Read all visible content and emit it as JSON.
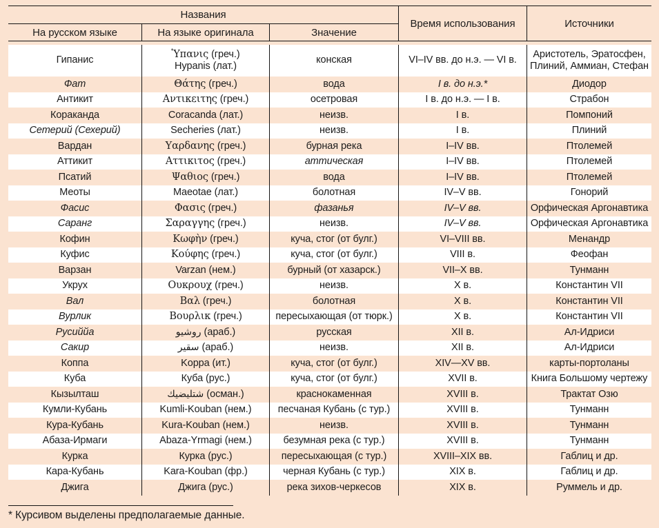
{
  "colors": {
    "page_background": "#fbe3d1",
    "row_white": "#ffffff",
    "line": "#141414",
    "text": "#1c1c1c"
  },
  "header": {
    "names_group": "Названия",
    "col_russian": "На русском языке",
    "col_original": "На языке оригинала",
    "col_meaning": "Значение",
    "col_time": "Время использования",
    "col_sources": "Источники"
  },
  "rows": [
    {
      "name": "Гипанис",
      "name_italic": false,
      "tall": true,
      "original": [
        {
          "special": "Ὑπανις",
          "kind": "greek",
          "rest": " (греч.)"
        },
        {
          "special": "",
          "kind": "",
          "rest": "Hypanis (лат.)"
        }
      ],
      "meaning": {
        "text": "конская",
        "italic": false
      },
      "time": {
        "text": "VI–IV вв. до н.э. — VI в.",
        "italic": false
      },
      "sources": [
        "Аристотель, Эратосфен,",
        "Плиний, Аммиан, Стефан"
      ]
    },
    {
      "name": "Фат",
      "name_italic": true,
      "tall": false,
      "original": [
        {
          "special": "Θάτης",
          "kind": "greek",
          "rest": " (греч.)"
        }
      ],
      "meaning": {
        "text": "вода",
        "italic": false
      },
      "time": {
        "text": "I в. до н.э.*",
        "italic": true
      },
      "sources": [
        "Диодор"
      ]
    },
    {
      "name": "Антикит",
      "name_italic": false,
      "tall": false,
      "original": [
        {
          "special": "Αντικειτης",
          "kind": "greek",
          "rest": " (греч.)"
        }
      ],
      "meaning": {
        "text": "осетровая",
        "italic": false
      },
      "time": {
        "text": "I в. до н.э. — I в.",
        "italic": false
      },
      "sources": [
        "Страбон"
      ]
    },
    {
      "name": "Кораканда",
      "name_italic": false,
      "tall": false,
      "original": [
        {
          "special": "",
          "kind": "",
          "rest": "Coracanda (лат.)"
        }
      ],
      "meaning": {
        "text": "неизв.",
        "italic": false
      },
      "time": {
        "text": "I в.",
        "italic": false
      },
      "sources": [
        "Помпоний"
      ]
    },
    {
      "name": "Сетерий (Сехерий)",
      "name_italic": true,
      "tall": false,
      "original": [
        {
          "special": "",
          "kind": "",
          "rest": "Secheries (лат.)"
        }
      ],
      "meaning": {
        "text": "неизв.",
        "italic": false
      },
      "time": {
        "text": "I в.",
        "italic": false
      },
      "sources": [
        "Плиний"
      ]
    },
    {
      "name": "Вардан",
      "name_italic": false,
      "tall": false,
      "original": [
        {
          "special": "Υαρδανης",
          "kind": "greek",
          "rest": " (греч.)"
        }
      ],
      "meaning": {
        "text": "бурная река",
        "italic": false
      },
      "time": {
        "text": "I–IV вв.",
        "italic": false
      },
      "sources": [
        "Птолемей"
      ]
    },
    {
      "name": "Аттикит",
      "name_italic": false,
      "tall": false,
      "original": [
        {
          "special": "Αττικιτος",
          "kind": "greek",
          "rest": " (греч.)"
        }
      ],
      "meaning": {
        "text": "аттическая",
        "italic": true
      },
      "time": {
        "text": "I–IV вв.",
        "italic": false
      },
      "sources": [
        "Птолемей"
      ]
    },
    {
      "name": "Псатий",
      "name_italic": false,
      "tall": false,
      "original": [
        {
          "special": "Ψαθιος",
          "kind": "greek",
          "rest": " (греч.)"
        }
      ],
      "meaning": {
        "text": "вода",
        "italic": false
      },
      "time": {
        "text": "I–IV вв.",
        "italic": false
      },
      "sources": [
        "Птолемей"
      ]
    },
    {
      "name": "Меоты",
      "name_italic": false,
      "tall": false,
      "original": [
        {
          "special": "",
          "kind": "",
          "rest": "Maeotae (лат.)"
        }
      ],
      "meaning": {
        "text": "болотная",
        "italic": false
      },
      "time": {
        "text": "IV–V вв.",
        "italic": false
      },
      "sources": [
        "Гонорий"
      ]
    },
    {
      "name": "Фасис",
      "name_italic": true,
      "tall": false,
      "original": [
        {
          "special": "Φασις",
          "kind": "greek",
          "rest": " (греч.)"
        }
      ],
      "meaning": {
        "text": "фазанья",
        "italic": true
      },
      "time": {
        "text": "IV–V вв.",
        "italic": true
      },
      "sources": [
        "Орфическая Аргонавтика"
      ]
    },
    {
      "name": "Саранг",
      "name_italic": true,
      "tall": false,
      "original": [
        {
          "special": "Σαραγγης",
          "kind": "greek",
          "rest": " (греч.)"
        }
      ],
      "meaning": {
        "text": "неизв.",
        "italic": false
      },
      "time": {
        "text": "IV–V вв.",
        "italic": true
      },
      "sources": [
        "Орфическая Аргонавтика"
      ]
    },
    {
      "name": "Кофин",
      "name_italic": false,
      "tall": false,
      "original": [
        {
          "special": "Κωφὴν",
          "kind": "greek",
          "rest": " (греч.)"
        }
      ],
      "meaning": {
        "text": "куча, стог (от булг.)",
        "italic": false
      },
      "time": {
        "text": "VI–VIII вв.",
        "italic": false
      },
      "sources": [
        "Менандр"
      ]
    },
    {
      "name": "Куфис",
      "name_italic": false,
      "tall": false,
      "original": [
        {
          "special": "Κούφης",
          "kind": "greek",
          "rest": " (греч.)"
        }
      ],
      "meaning": {
        "text": "куча, стог (от булг.)",
        "italic": false
      },
      "time": {
        "text": "VIII в.",
        "italic": false
      },
      "sources": [
        "Феофан"
      ]
    },
    {
      "name": "Варзан",
      "name_italic": false,
      "tall": false,
      "original": [
        {
          "special": "",
          "kind": "",
          "rest": "Varzan (нем.)"
        }
      ],
      "meaning": {
        "text": "бурный (от хазарск.)",
        "italic": false
      },
      "time": {
        "text": "VII–X вв.",
        "italic": false
      },
      "sources": [
        "Тунманн"
      ]
    },
    {
      "name": "Укрух",
      "name_italic": false,
      "tall": false,
      "original": [
        {
          "special": "Ουκρουχ",
          "kind": "greek",
          "rest": " (греч.)"
        }
      ],
      "meaning": {
        "text": "неизв.",
        "italic": false
      },
      "time": {
        "text": "X в.",
        "italic": false
      },
      "sources": [
        "Константин VII"
      ]
    },
    {
      "name": "Вал",
      "name_italic": true,
      "tall": false,
      "original": [
        {
          "special": "Βαλ",
          "kind": "greek",
          "rest": " (греч.)"
        }
      ],
      "meaning": {
        "text": "болотная",
        "italic": false
      },
      "time": {
        "text": "X в.",
        "italic": false
      },
      "sources": [
        "Константин VII"
      ]
    },
    {
      "name": "Вурлик",
      "name_italic": true,
      "tall": false,
      "original": [
        {
          "special": "Βουρλικ",
          "kind": "greek",
          "rest": " (греч.)"
        }
      ],
      "meaning": {
        "text": "пересыхающая (от тюрк.)",
        "italic": false
      },
      "time": {
        "text": "X в.",
        "italic": false
      },
      "sources": [
        "Константин VII"
      ]
    },
    {
      "name": "Русиййа",
      "name_italic": true,
      "tall": false,
      "original": [
        {
          "special": "روشيو",
          "kind": "arabic",
          "rest": " (араб.)"
        }
      ],
      "meaning": {
        "text": "русская",
        "italic": false
      },
      "time": {
        "text": "XII в.",
        "italic": false
      },
      "sources": [
        "Ал-Идриси"
      ]
    },
    {
      "name": "Сакир",
      "name_italic": true,
      "tall": false,
      "original": [
        {
          "special": "سقير",
          "kind": "arabic",
          "rest": " (араб.)"
        }
      ],
      "meaning": {
        "text": "неизв.",
        "italic": false
      },
      "time": {
        "text": "XII в.",
        "italic": false
      },
      "sources": [
        "Ал-Идриси"
      ]
    },
    {
      "name": "Коппа",
      "name_italic": false,
      "tall": false,
      "original": [
        {
          "special": "",
          "kind": "",
          "rest": "Koppa (ит.)"
        }
      ],
      "meaning": {
        "text": "куча, стог (от булг.)",
        "italic": false
      },
      "time": {
        "text": "XIV—XV вв.",
        "italic": false
      },
      "sources": [
        "карты-портоланы"
      ]
    },
    {
      "name": "Куба",
      "name_italic": false,
      "tall": false,
      "original": [
        {
          "special": "",
          "kind": "",
          "rest": "Куба (рус.)"
        }
      ],
      "meaning": {
        "text": "куча, стог (от булг.)",
        "italic": false
      },
      "time": {
        "text": "XVII в.",
        "italic": false
      },
      "sources": [
        "Книга Большому чертежу"
      ]
    },
    {
      "name": "Кызылташ",
      "name_italic": false,
      "tall": false,
      "original": [
        {
          "special": "شتليضيك",
          "kind": "arabic",
          "rest": " (осман.)"
        }
      ],
      "meaning": {
        "text": "краснокаменная",
        "italic": false
      },
      "time": {
        "text": "XVIII в.",
        "italic": false
      },
      "sources": [
        "Трактат Озю"
      ]
    },
    {
      "name": "Кумли-Кубань",
      "name_italic": false,
      "tall": false,
      "original": [
        {
          "special": "",
          "kind": "",
          "rest": "Kumli-Kouban (нем.)"
        }
      ],
      "meaning": {
        "text": "песчаная Кубань (с тур.)",
        "italic": false
      },
      "time": {
        "text": "XVIII в.",
        "italic": false
      },
      "sources": [
        "Тунманн"
      ]
    },
    {
      "name": "Кура-Кубань",
      "name_italic": false,
      "tall": false,
      "original": [
        {
          "special": "",
          "kind": "",
          "rest": "Kura-Kouban (нем.)"
        }
      ],
      "meaning": {
        "text": "неизв.",
        "italic": false
      },
      "time": {
        "text": "XVIII в.",
        "italic": false
      },
      "sources": [
        "Тунманн"
      ]
    },
    {
      "name": "Абаза-Ирмаги",
      "name_italic": false,
      "tall": false,
      "original": [
        {
          "special": "",
          "kind": "",
          "rest": "Abaza-Yrmagi (нем.)"
        }
      ],
      "meaning": {
        "text": "безумная река (с тур.)",
        "italic": false
      },
      "time": {
        "text": "XVIII в.",
        "italic": false
      },
      "sources": [
        "Тунманн"
      ]
    },
    {
      "name": "Курка",
      "name_italic": false,
      "tall": false,
      "original": [
        {
          "special": "",
          "kind": "",
          "rest": "Курка (рус.)"
        }
      ],
      "meaning": {
        "text": "пересыхающая (с тур.)",
        "italic": false
      },
      "time": {
        "text": "XVIII–XIX вв.",
        "italic": false
      },
      "sources": [
        "Габлиц и др."
      ]
    },
    {
      "name": "Кара-Кубань",
      "name_italic": false,
      "tall": false,
      "original": [
        {
          "special": "",
          "kind": "",
          "rest": "Kara-Kouban (фр.)"
        }
      ],
      "meaning": {
        "text": "черная Кубань (с тур.)",
        "italic": false
      },
      "time": {
        "text": "XIX в.",
        "italic": false
      },
      "sources": [
        "Габлиц и др."
      ]
    },
    {
      "name": "Джига",
      "name_italic": false,
      "tall": false,
      "original": [
        {
          "special": "",
          "kind": "",
          "rest": "Джига (рус.)"
        }
      ],
      "meaning": {
        "text": "река зихов-черкесов",
        "italic": false
      },
      "time": {
        "text": "XIX в.",
        "italic": false
      },
      "sources": [
        "Руммель и др."
      ]
    }
  ],
  "footnote": "* Курсивом выделены предполагаемые данные."
}
